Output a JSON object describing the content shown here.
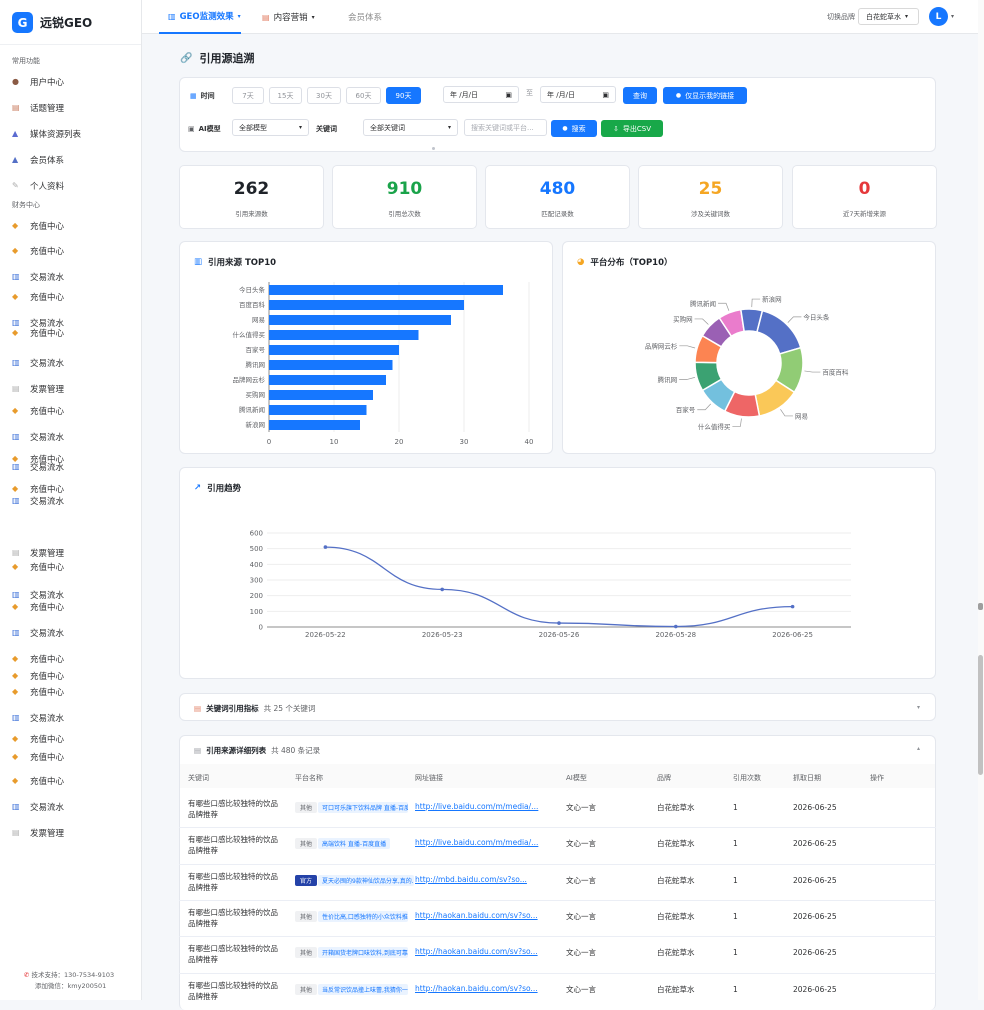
{
  "app": {
    "logo_letter": "G",
    "name": "远锐GEO"
  },
  "sidebar": {
    "section_common": "常用功能",
    "section_finance": "财务中心",
    "common_items": [
      {
        "label": "用户中心",
        "icon": "user-icon"
      },
      {
        "label": "话题管理",
        "icon": "topic-icon"
      },
      {
        "label": "媒体资源列表",
        "icon": "media-icon"
      },
      {
        "label": "会员体系",
        "icon": "member-icon"
      },
      {
        "label": "个人资料",
        "icon": "profile-icon"
      }
    ],
    "finance_items": [
      {
        "label": "充值中心",
        "icon": "recharge-icon"
      },
      {
        "label": "充值中心",
        "icon": "recharge-icon"
      },
      {
        "label": "交易流水",
        "icon": "transaction-icon"
      },
      {
        "label": "充值中心",
        "icon": "recharge-icon"
      },
      {
        "label": "交易流水",
        "icon": "transaction-icon"
      },
      {
        "label": "充值中心",
        "icon": "recharge-icon"
      },
      {
        "label": "交易流水",
        "icon": "transaction-icon"
      },
      {
        "label": "发票管理",
        "icon": "invoice-icon"
      },
      {
        "label": "充值中心",
        "icon": "recharge-icon"
      },
      {
        "label": "交易流水",
        "icon": "transaction-icon"
      },
      {
        "label": "充值中心",
        "icon": "recharge-icon"
      },
      {
        "label": "交易流水",
        "icon": "transaction-icon"
      },
      {
        "label": "充值中心",
        "icon": "recharge-icon"
      },
      {
        "label": "交易流水",
        "icon": "transaction-icon"
      },
      {
        "label": "发票管理",
        "icon": "invoice-icon"
      },
      {
        "label": "充值中心",
        "icon": "recharge-icon"
      },
      {
        "label": "交易流水",
        "icon": "transaction-icon"
      },
      {
        "label": "充值中心",
        "icon": "recharge-icon"
      },
      {
        "label": "交易流水",
        "icon": "transaction-icon"
      },
      {
        "label": "充值中心",
        "icon": "recharge-icon"
      },
      {
        "label": "充值中心",
        "icon": "recharge-icon"
      },
      {
        "label": "充值中心",
        "icon": "recharge-icon"
      },
      {
        "label": "交易流水",
        "icon": "transaction-icon"
      },
      {
        "label": "充值中心",
        "icon": "recharge-icon"
      },
      {
        "label": "充值中心",
        "icon": "recharge-icon"
      },
      {
        "label": "充值中心",
        "icon": "recharge-icon"
      },
      {
        "label": "交易流水",
        "icon": "transaction-icon"
      },
      {
        "label": "发票管理",
        "icon": "invoice-icon"
      }
    ],
    "footer_phone": "技术支持：130-7534-9103",
    "footer_wechat": "添加微信：kmy200501"
  },
  "topbar": {
    "tabs": [
      {
        "label": "GEO监测效果",
        "icon": "chart-icon"
      },
      {
        "label": "内容营销",
        "icon": "content-icon"
      },
      {
        "label": "会员体系",
        "icon": ""
      }
    ],
    "brand_label": "切换品牌",
    "brand_value": "白花蛇草水",
    "avatar_letter": "L"
  },
  "page": {
    "title": "引用源追溯",
    "title_icon": "link-icon"
  },
  "filters": {
    "time_label": "时间",
    "range_options": [
      "7天",
      "15天",
      "30天",
      "60天",
      "90天"
    ],
    "range_selected": "90天",
    "date_start": "年 /月/日",
    "date_sep": "至",
    "date_end": "年 /月/日",
    "query_button": "查询",
    "mine_button": "仅显示我的链接",
    "ai_label": "AI模型",
    "ai_value": "全部模型",
    "kw_label": "关键词",
    "kw_value": "全部关键词",
    "search_placeholder": "搜索关键词或平台...",
    "search_button": "搜索",
    "export_button": "导出CSV"
  },
  "stats": [
    {
      "value": "262",
      "label": "引用来源数",
      "color": "#1f2329"
    },
    {
      "value": "910",
      "label": "引用总次数",
      "color": "#1aa34a"
    },
    {
      "value": "480",
      "label": "匹配记录数",
      "color": "#1677ff"
    },
    {
      "value": "25",
      "label": "涉及关键词数",
      "color": "#f5a623"
    },
    {
      "value": "0",
      "label": "近7天新增来源",
      "color": "#e5383b"
    }
  ],
  "charts": {
    "bar_title": "引用来源 TOP10",
    "pie_title": "平台分布（TOP10）",
    "line_title": "引用趋势"
  },
  "chart_data": [
    {
      "type": "bar",
      "orientation": "horizontal",
      "categories": [
        "今日头条",
        "百度百科",
        "网易",
        "什么值得买",
        "百家号",
        "腾讯网",
        "品牌网云杉",
        "买购网",
        "腾讯新闻",
        "新浪网"
      ],
      "values": [
        36,
        30,
        28,
        23,
        20,
        19,
        18,
        16,
        15,
        14
      ],
      "xlim": [
        0,
        40
      ],
      "xticks": [
        0,
        10,
        20,
        30,
        40
      ],
      "color": "#1677ff"
    },
    {
      "type": "pie",
      "donut": true,
      "labels": [
        "今日头条",
        "百度百科",
        "网易",
        "什么值得买",
        "百家号",
        "腾讯网",
        "品牌网云杉",
        "买购网",
        "腾讯新闻",
        "新浪网"
      ],
      "values": [
        36,
        30,
        28,
        23,
        20,
        19,
        18,
        16,
        15,
        14
      ],
      "colors": [
        "#5470c6",
        "#91cc75",
        "#fac858",
        "#ee6666",
        "#73c0de",
        "#3ba272",
        "#fc8452",
        "#9a60b4",
        "#ea7ccc",
        "#5470c6"
      ]
    },
    {
      "type": "line",
      "x": [
        "2026-05-22",
        "2026-05-23",
        "2026-05-26",
        "2026-05-28",
        "2026-06-25"
      ],
      "values": [
        510,
        240,
        25,
        3,
        130
      ],
      "ylim": [
        0,
        600
      ],
      "yticks": [
        0,
        100,
        200,
        300,
        400,
        500,
        600
      ],
      "smooth": true,
      "color": "#5470c6"
    }
  ],
  "keyword_section": {
    "title": "关键词引用指标",
    "sub": "共 25 个关键词"
  },
  "detail_section": {
    "title": "引用来源详细列表",
    "sub": "共 480 条记录"
  },
  "table": {
    "headers": [
      "关键词",
      "平台名称",
      "网址链接",
      "AI模型",
      "品牌",
      "引用次数",
      "抓取日期",
      "操作"
    ],
    "rows": [
      {
        "keyword": "有哪些口感比较独特的饮品品牌推荐",
        "tag": "其他",
        "title": "可口可乐旗下饮料品牌 直播-百度直播",
        "url": "http://live.baidu.com/m/media/...",
        "model": "文心一言",
        "brand": "白花蛇草水",
        "count": "1",
        "date": "2026-06-25"
      },
      {
        "keyword": "有哪些口感比较独特的饮品品牌推荐",
        "tag": "其他",
        "title": "高端饮料 直播-百度直播",
        "url": "http://live.baidu.com/m/media/...",
        "model": "文心一言",
        "brand": "白花蛇草水",
        "count": "1",
        "date": "2026-06-25"
      },
      {
        "keyword": "有哪些口感比较独特的饮品品牌推荐",
        "tag": "官方",
        "title": "夏天必囤的9款神仙饮品分享,真的...",
        "url": "http://mbd.baidu.com/sv?so...",
        "model": "文心一言",
        "brand": "白花蛇草水",
        "count": "1",
        "date": "2026-06-25"
      },
      {
        "keyword": "有哪些口感比较独特的饮品品牌推荐",
        "tag": "其他",
        "title": "性价比高,口感独特的小众饮料推荐...",
        "url": "http://haokan.baidu.com/sv?so...",
        "model": "文心一言",
        "brand": "白花蛇草水",
        "count": "1",
        "date": "2026-06-25"
      },
      {
        "keyword": "有哪些口感比较独特的饮品品牌推荐",
        "tag": "其他",
        "title": "开箱国货老牌口味饮料,到底可靠...",
        "url": "http://haokan.baidu.com/sv?so...",
        "model": "文心一言",
        "brand": "白花蛇草水",
        "count": "1",
        "date": "2026-06-25"
      },
      {
        "keyword": "有哪些口感比较独特的饮品品牌推荐",
        "tag": "其他",
        "title": "当反常识饮品撞上味蕾,我猜你一...",
        "url": "http://haokan.baidu.com/sv?so...",
        "model": "文心一言",
        "brand": "白花蛇草水",
        "count": "1",
        "date": "2026-06-25"
      }
    ]
  }
}
